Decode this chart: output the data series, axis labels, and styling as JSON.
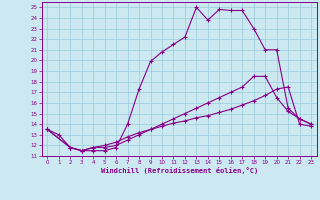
{
  "xlabel": "Windchill (Refroidissement éolien,°C)",
  "bg_color": "#cce8f0",
  "line_color": "#880088",
  "grid_color": "#99ccdd",
  "xlim": [
    -0.5,
    23.5
  ],
  "ylim": [
    11,
    25.5
  ],
  "xticks": [
    0,
    1,
    2,
    3,
    4,
    5,
    6,
    7,
    8,
    9,
    10,
    11,
    12,
    13,
    14,
    15,
    16,
    17,
    18,
    19,
    20,
    21,
    22,
    23
  ],
  "yticks": [
    11,
    12,
    13,
    14,
    15,
    16,
    17,
    18,
    19,
    20,
    21,
    22,
    23,
    24,
    25
  ],
  "line1_x": [
    0,
    1,
    2,
    3,
    4,
    5,
    6,
    7,
    8,
    9,
    10,
    11,
    12,
    13,
    14,
    15,
    16,
    17,
    18,
    19,
    20,
    21,
    22,
    23
  ],
  "line1_y": [
    13.5,
    13.0,
    11.8,
    11.5,
    11.5,
    11.5,
    11.8,
    14.0,
    17.3,
    19.9,
    20.8,
    21.5,
    22.2,
    25.0,
    23.8,
    24.8,
    24.7,
    24.7,
    23.0,
    21.0,
    21.0,
    15.5,
    14.5,
    14.0
  ],
  "line2_x": [
    0,
    2,
    3,
    4,
    5,
    6,
    7,
    8,
    9,
    10,
    11,
    12,
    13,
    14,
    15,
    16,
    17,
    18,
    19,
    20,
    21,
    22,
    23
  ],
  "line2_y": [
    13.5,
    11.8,
    11.5,
    11.8,
    11.8,
    12.0,
    12.5,
    13.0,
    13.5,
    14.0,
    14.5,
    15.0,
    15.5,
    16.0,
    16.5,
    17.0,
    17.5,
    18.5,
    18.5,
    16.5,
    15.2,
    14.5,
    14.0
  ],
  "line3_x": [
    0,
    2,
    3,
    4,
    5,
    6,
    7,
    8,
    9,
    10,
    11,
    12,
    13,
    14,
    15,
    16,
    17,
    18,
    19,
    20,
    21,
    22,
    23
  ],
  "line3_y": [
    13.5,
    11.8,
    11.5,
    11.8,
    12.0,
    12.3,
    12.8,
    13.2,
    13.5,
    13.8,
    14.1,
    14.3,
    14.6,
    14.8,
    15.1,
    15.4,
    15.8,
    16.2,
    16.7,
    17.3,
    17.5,
    14.0,
    13.8
  ]
}
